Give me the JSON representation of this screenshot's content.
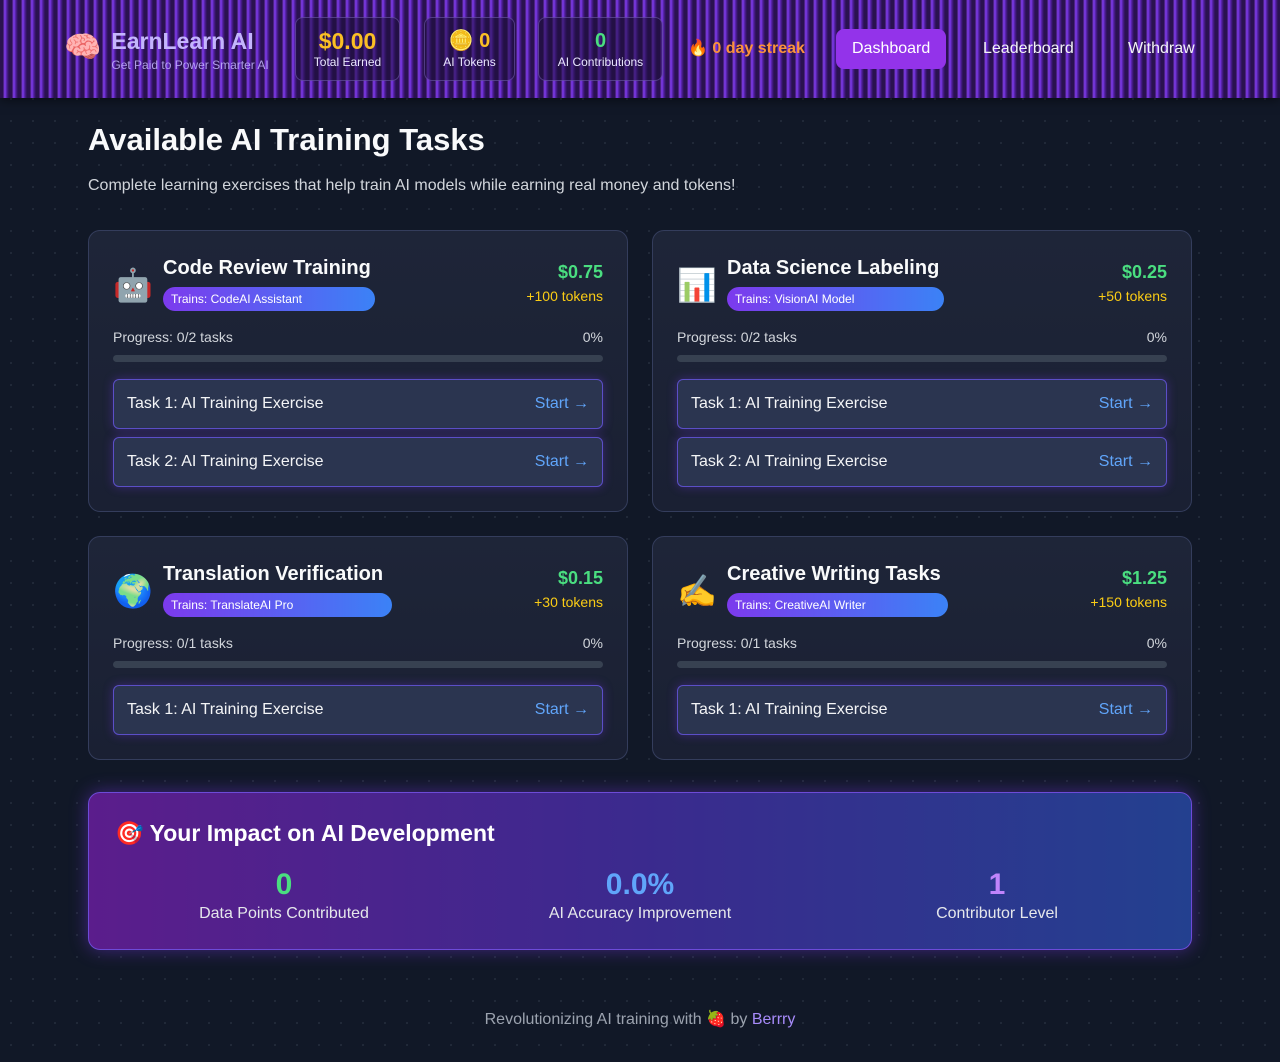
{
  "app": {
    "icon": "brain-icon",
    "title": "EarnLearn AI",
    "subtitle": "Get Paid to Power Smarter AI"
  },
  "stats": {
    "earned_value": "$0.00",
    "earned_label": "Total Earned",
    "tokens_value": "0",
    "tokens_icon": "🪙",
    "tokens_label": "AI Tokens",
    "contrib_value": "0",
    "contrib_label": "AI Contributions"
  },
  "streak": {
    "icon": "🔥",
    "text": "0 day streak"
  },
  "nav": {
    "dashboard": "Dashboard",
    "leaderboard": "Leaderboard",
    "withdraw": "Withdraw"
  },
  "main": {
    "title": "Available AI Training Tasks",
    "subtitle": "Complete learning exercises that help train AI models while earning real money and tokens!"
  },
  "cards": [
    {
      "icon": "🤖",
      "title": "Code Review Training",
      "badge": "Trains: CodeAI Assistant",
      "price": "$0.75",
      "tokens": "+100 tokens",
      "progress_label": "Progress: 0/2 tasks",
      "progress_pct": "0%",
      "progress_fraction": 0,
      "tasks": [
        {
          "name": "Task 1: AI Training Exercise",
          "action": "Start →"
        },
        {
          "name": "Task 2: AI Training Exercise",
          "action": "Start →"
        }
      ]
    },
    {
      "icon": "📊",
      "title": "Data Science Labeling",
      "badge": "Trains: VisionAI Model",
      "price": "$0.25",
      "tokens": "+50 tokens",
      "progress_label": "Progress: 0/2 tasks",
      "progress_pct": "0%",
      "progress_fraction": 0,
      "tasks": [
        {
          "name": "Task 1: AI Training Exercise",
          "action": "Start →"
        },
        {
          "name": "Task 2: AI Training Exercise",
          "action": "Start →"
        }
      ]
    },
    {
      "icon": "🌍",
      "title": "Translation Verification",
      "badge": "Trains: TranslateAI Pro",
      "price": "$0.15",
      "tokens": "+30 tokens",
      "progress_label": "Progress: 0/1 tasks",
      "progress_pct": "0%",
      "progress_fraction": 0,
      "tasks": [
        {
          "name": "Task 1: AI Training Exercise",
          "action": "Start →"
        }
      ]
    },
    {
      "icon": "✍️",
      "title": "Creative Writing Tasks",
      "badge": "Trains: CreativeAI Writer",
      "price": "$1.25",
      "tokens": "+150 tokens",
      "progress_label": "Progress: 0/1 tasks",
      "progress_pct": "0%",
      "progress_fraction": 0,
      "tasks": [
        {
          "name": "Task 1: AI Training Exercise",
          "action": "Start →"
        }
      ]
    }
  ],
  "impact": {
    "icon": "🎯",
    "title": "Your Impact on AI Development",
    "stats": [
      {
        "value": "0",
        "label": "Data Points Contributed",
        "color": "#4ade80"
      },
      {
        "value": "0.0%",
        "label": "AI Accuracy Improvement",
        "color": "#60a5fa"
      },
      {
        "value": "1",
        "label": "Contributor Level",
        "color": "#c084fc"
      }
    ]
  },
  "footer": {
    "text": "Revolutionizing AI training with",
    "icon": "🍓",
    "by": "by",
    "link": "Berrry"
  },
  "colors": {
    "accent": "#9333ea",
    "money": "#4ade80",
    "tokens": "#facc15",
    "gold": "#fbbf24",
    "link": "#60a5fa"
  }
}
